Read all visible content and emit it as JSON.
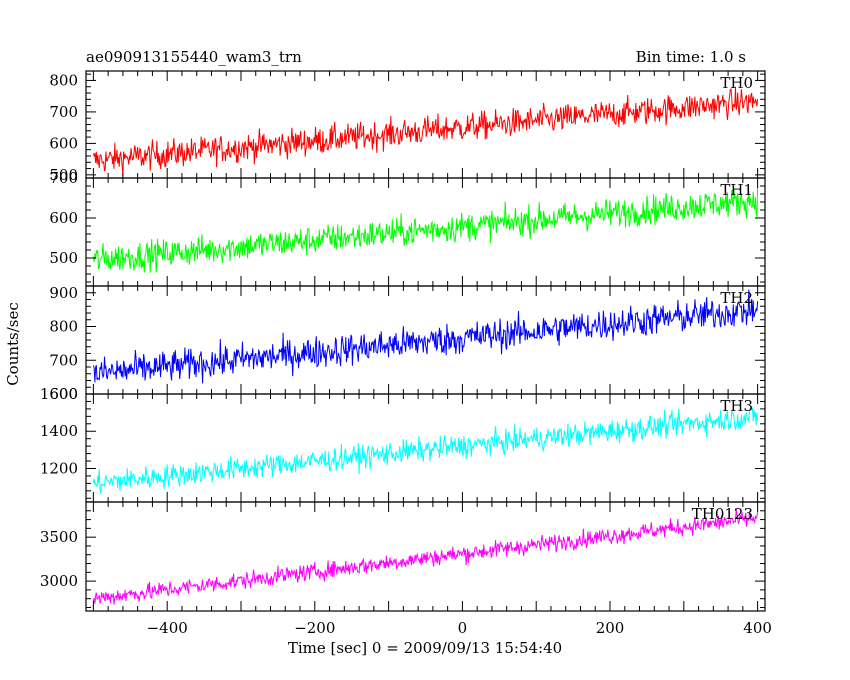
{
  "chart_data": {
    "type": "line",
    "title_left": "ae090913155440_wam3_trn",
    "title_right": "Bin time: 1.0 s",
    "xlabel": "Time [sec] 0 = 2009/09/13 15:54:40",
    "ylabel": "Counts/sec",
    "xlim": [
      -510,
      410
    ],
    "x_ticks": [
      -400,
      -200,
      0,
      200,
      400
    ],
    "x_tick_labels": [
      "−400",
      "−200",
      "0",
      "200",
      "400"
    ],
    "bin_time": 1.0,
    "x_range": [
      -500,
      400
    ],
    "panels": [
      {
        "name": "TH0",
        "color": "#ff0000",
        "ylim": [
          490,
          830
        ],
        "y_ticks": [
          500,
          600,
          700,
          800
        ],
        "trend_start": 545,
        "trend_end": 735,
        "noise": 32
      },
      {
        "name": "TH1",
        "color": "#00ff00",
        "ylim": [
          430,
          700
        ],
        "y_ticks": [
          500,
          600,
          700
        ],
        "trend_start": 495,
        "trend_end": 645,
        "noise": 26
      },
      {
        "name": "TH2",
        "color": "#0000ff",
        "ylim": [
          600,
          920
        ],
        "y_ticks": [
          600,
          700,
          800,
          900
        ],
        "trend_start": 660,
        "trend_end": 850,
        "noise": 34
      },
      {
        "name": "TH3",
        "color": "#00ffff",
        "ylim": [
          1020,
          1600
        ],
        "y_ticks": [
          1200,
          1400,
          1600
        ],
        "trend_start": 1120,
        "trend_end": 1480,
        "noise": 45
      },
      {
        "name": "TH0123",
        "color": "#ff00ff",
        "ylim": [
          2660,
          3900
        ],
        "y_ticks": [
          3000,
          3500
        ],
        "trend_start": 2800,
        "trend_end": 3720,
        "noise": 70
      }
    ]
  }
}
